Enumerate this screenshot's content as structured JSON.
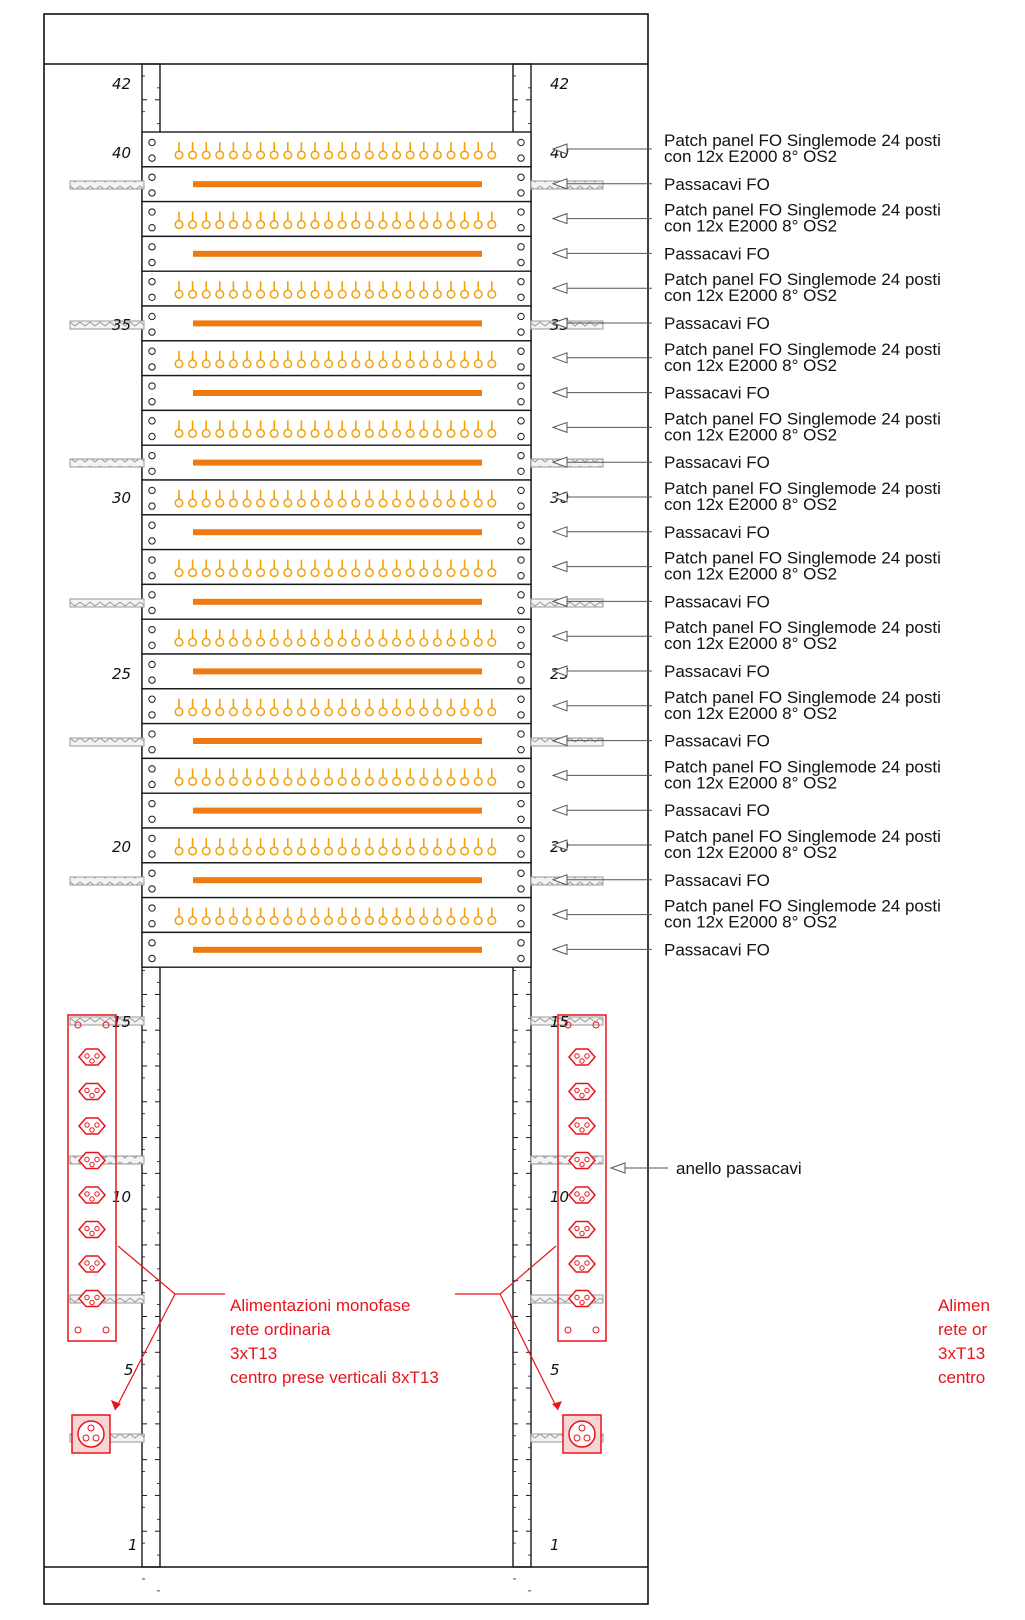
{
  "diagram": {
    "unit_labels": [
      "42",
      "40",
      "35",
      "30",
      "25",
      "20",
      "15",
      "10",
      "5",
      "1"
    ],
    "callouts": {
      "patch_panel": [
        "Patch panel FO Singlemode 24 posti",
        "con 12x E2000 8° OS2"
      ],
      "cable_manager": "Passacavi FO",
      "cable_ring": "anello passacavi"
    },
    "rack_contents": {
      "patch_panels": 12,
      "cable_managers": 12,
      "ports_per_panel": 24,
      "vertical_socket_outlets": 8
    },
    "power_note": [
      "Alimentazioni monofase",
      "rete ordinaria",
      "3xT13",
      "centro prese verticali 8xT13"
    ],
    "power_note_clipped": [
      "Alimen",
      "rete or",
      "3xT13",
      "centro"
    ],
    "colors": {
      "frame": "#1a1a1a",
      "fiber_port": "#f2a20d",
      "cable_manager_bar": "#f07a12",
      "power": "#e8131b",
      "ring": "#9a9a9a"
    }
  }
}
